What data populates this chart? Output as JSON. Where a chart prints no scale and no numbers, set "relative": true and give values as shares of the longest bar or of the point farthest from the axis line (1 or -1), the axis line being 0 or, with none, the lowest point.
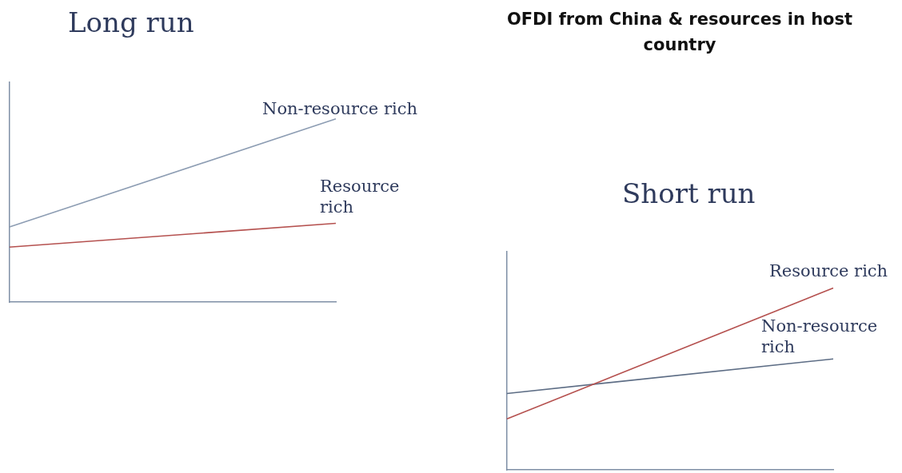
{
  "chart_data": [
    {
      "type": "line",
      "title": "Long run",
      "categories": [
        null,
        null
      ],
      "relative": true,
      "tick_labels": false,
      "legend": false,
      "grid": false,
      "marker": "none",
      "line_style": "solid",
      "series": [
        {
          "name": "Non-resource rich",
          "color": "#8d9db3",
          "values": [
            0.41,
            1.0
          ]
        },
        {
          "name": "Resource rich",
          "color": "#b5514f",
          "values": [
            0.3,
            0.43
          ]
        }
      ]
    },
    {
      "type": "line",
      "title": "Short run",
      "annotations": [
        "OFDI from China & resources in host country"
      ],
      "categories": [
        null,
        null
      ],
      "relative": true,
      "tick_labels": false,
      "legend": false,
      "grid": false,
      "marker": "none",
      "line_style": "solid",
      "series": [
        {
          "name": "Resource rich",
          "color": "#b5514f",
          "values": [
            0.28,
            1.0
          ]
        },
        {
          "name": "Non-resource rich",
          "color": "#5d6d85",
          "values": [
            0.42,
            0.61
          ]
        }
      ]
    }
  ]
}
